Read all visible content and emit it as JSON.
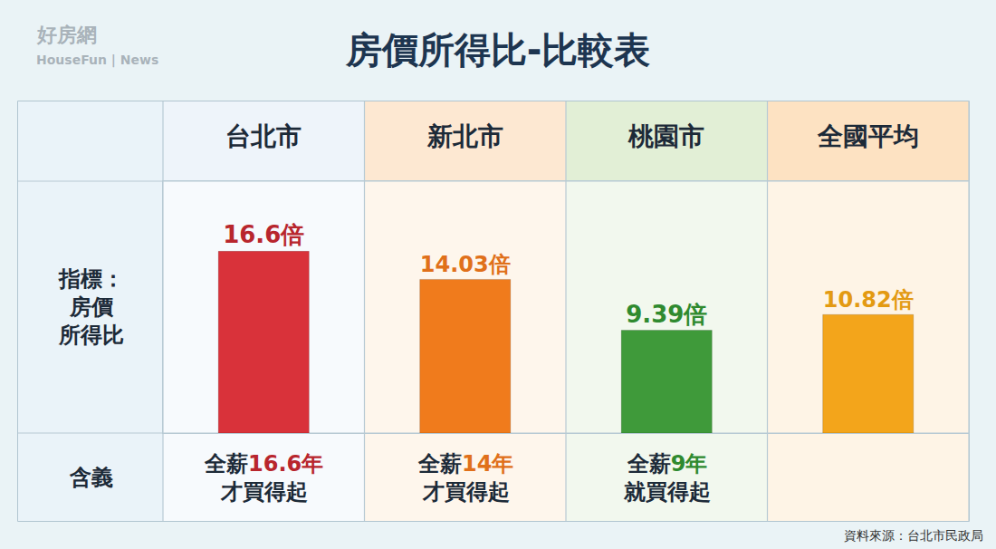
{
  "chart_data": {
    "type": "bar",
    "title": "房價所得比-比較表",
    "categories": [
      "台北市",
      "新北市",
      "桃園市",
      "全國平均"
    ],
    "values": [
      16.6,
      14.03,
      9.39,
      10.82
    ],
    "value_labels": [
      "16.6倍",
      "14.03倍",
      "9.39倍",
      "10.82倍"
    ],
    "colors": [
      "#d9323a",
      "#f07b1c",
      "#3f9a3a",
      "#f3a51b"
    ],
    "data_labels": true,
    "tick_labels": "x",
    "grid": false,
    "ylim": [
      0,
      23
    ],
    "yticks": [],
    "row_labels": {
      "indicator": [
        "指標：",
        "房價",
        "所得比"
      ],
      "meaning": "含義"
    },
    "meanings": [
      [
        "全薪",
        "16.6年",
        "才買得起"
      ],
      [
        "全薪",
        "14年",
        "才買得起"
      ],
      [
        "全薪",
        "9年",
        "就買得起"
      ],
      null
    ],
    "source": "資料來源：台北市民政局",
    "watermark": [
      "好房網",
      "HouseFun | News"
    ]
  }
}
